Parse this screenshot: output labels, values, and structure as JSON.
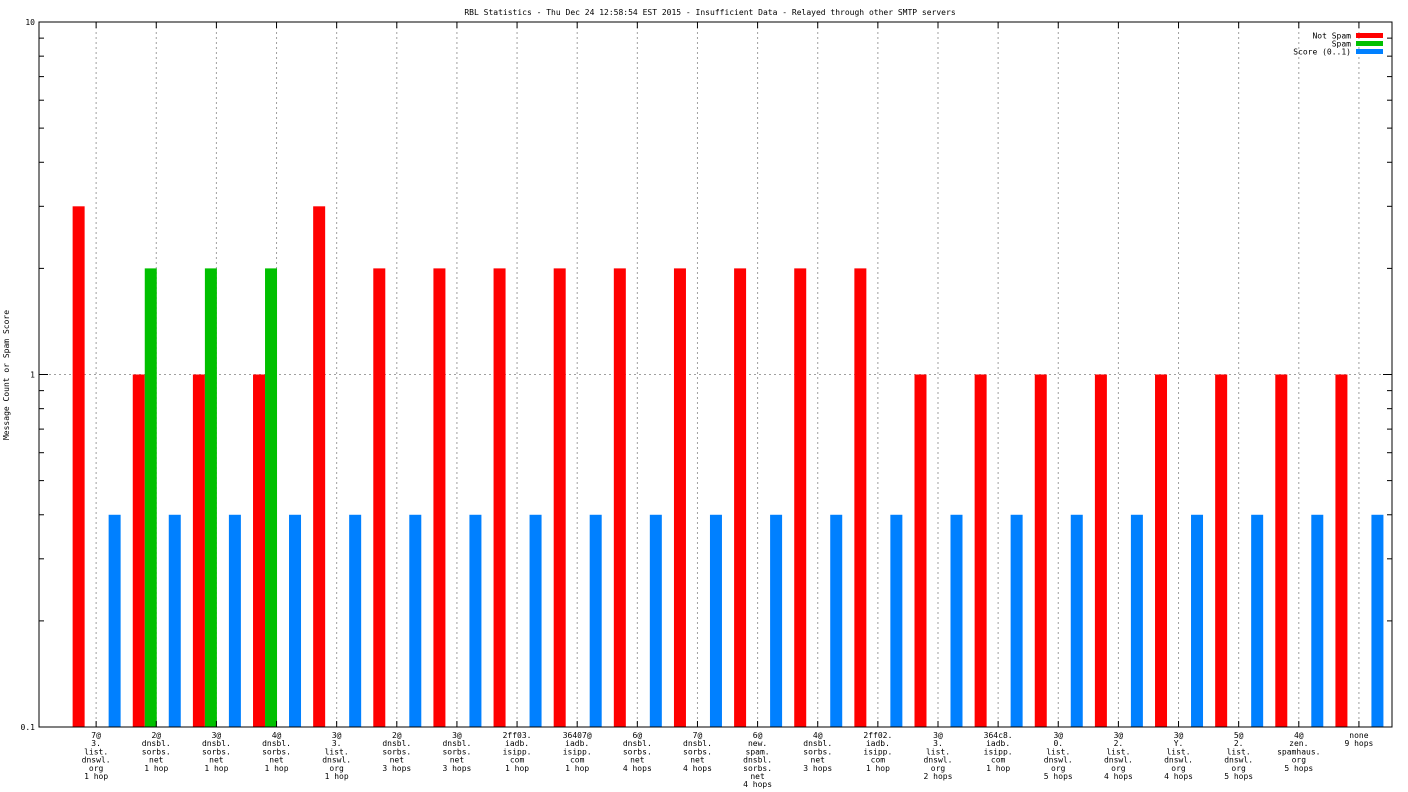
{
  "chart_data": {
    "type": "bar",
    "title": "RBL Statistics - Thu Dec 24 12:58:54 EST 2015 - Insufficient Data - Relayed through other SMTP servers",
    "xlabel": "",
    "ylabel": "Message Count or Spam Score",
    "y_scale": "log",
    "ylim": [
      0.1,
      10
    ],
    "y_ticks": [
      "0.1",
      "1",
      "10"
    ],
    "grid": true,
    "legend_position": "top-right",
    "categories": [
      [
        "7@",
        "3.",
        "list.",
        "dnswl.",
        "org",
        "1 hop"
      ],
      [
        "2@",
        "dnsbl.",
        "sorbs.",
        "net",
        "1 hop"
      ],
      [
        "3@",
        "dnsbl.",
        "sorbs.",
        "net",
        "1 hop"
      ],
      [
        "4@",
        "dnsbl.",
        "sorbs.",
        "net",
        "1 hop"
      ],
      [
        "3@",
        "3.",
        "list.",
        "dnswl.",
        "org",
        "1 hop"
      ],
      [
        "2@",
        "dnsbl.",
        "sorbs.",
        "net",
        "3 hops"
      ],
      [
        "3@",
        "dnsbl.",
        "sorbs.",
        "net",
        "3 hops"
      ],
      [
        "2ff03.",
        "iadb.",
        "isipp.",
        "com",
        "1 hop"
      ],
      [
        "36407@",
        "iadb.",
        "isipp.",
        "com",
        "1 hop"
      ],
      [
        "6@",
        "dnsbl.",
        "sorbs.",
        "net",
        "4 hops"
      ],
      [
        "7@",
        "dnsbl.",
        "sorbs.",
        "net",
        "4 hops"
      ],
      [
        "6@",
        "new.",
        "spam.",
        "dnsbl.",
        "sorbs.",
        "net",
        "4 hops"
      ],
      [
        "4@",
        "dnsbl.",
        "sorbs.",
        "net",
        "3 hops"
      ],
      [
        "2ff02.",
        "iadb.",
        "isipp.",
        "com",
        "1 hop"
      ],
      [
        "3@",
        "3.",
        "list.",
        "dnswl.",
        "org",
        "2 hops"
      ],
      [
        "364c8.",
        "iadb.",
        "isipp.",
        "com",
        "1 hop"
      ],
      [
        "3@",
        "0.",
        "list.",
        "dnswl.",
        "org",
        "5 hops"
      ],
      [
        "3@",
        "2.",
        "list.",
        "dnswl.",
        "org",
        "4 hops"
      ],
      [
        "3@",
        "Y.",
        "list.",
        "dnswl.",
        "org",
        "4 hops"
      ],
      [
        "5@",
        "2.",
        "list.",
        "dnswl.",
        "org",
        "5 hops"
      ],
      [
        "4@",
        "zen.",
        "spamhaus.",
        "org",
        "5 hops"
      ],
      [
        "none",
        "9 hops"
      ]
    ],
    "series": [
      {
        "name": "Not Spam",
        "color": "#ff0000",
        "values": [
          3,
          1,
          1,
          1,
          3,
          2,
          2,
          2,
          2,
          2,
          2,
          2,
          2,
          2,
          1,
          1,
          1,
          1,
          1,
          1,
          1,
          1
        ]
      },
      {
        "name": "Spam",
        "color": "#00c000",
        "values": [
          0,
          2,
          2,
          2,
          0,
          0,
          0,
          0,
          0,
          0,
          0,
          0,
          0,
          0,
          0,
          0,
          0,
          0,
          0,
          0,
          0,
          0
        ]
      },
      {
        "name": "Score (0..1)",
        "color": "#0080ff",
        "values": [
          0.4,
          0.4,
          0.4,
          0.4,
          0.4,
          0.4,
          0.4,
          0.4,
          0.4,
          0.4,
          0.4,
          0.4,
          0.4,
          0.4,
          0.4,
          0.4,
          0.4,
          0.4,
          0.4,
          0.4,
          0.4,
          0.4
        ]
      }
    ]
  }
}
